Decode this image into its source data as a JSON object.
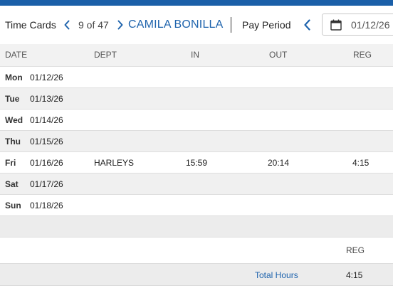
{
  "header": {
    "title": "Time Cards",
    "record_position": "9 of 47",
    "employee_name": "CAMILA BONILLA",
    "pay_period_label": "Pay Period",
    "pay_period_date": "01/12/26"
  },
  "icons": {
    "prev_employee": "chevron-left-icon",
    "next_employee": "chevron-right-icon",
    "prev_period": "chevron-left-icon",
    "calendar": "calendar-icon"
  },
  "colors": {
    "brand": "#1a5fa8",
    "link": "#1f64ad"
  },
  "table": {
    "columns": [
      "DATE",
      "DEPT",
      "IN",
      "OUT",
      "REG"
    ],
    "rows": [
      {
        "day": "Mon",
        "date": "01/12/26",
        "dept": "",
        "in": "",
        "out": "",
        "reg": ""
      },
      {
        "day": "Tue",
        "date": "01/13/26",
        "dept": "",
        "in": "",
        "out": "",
        "reg": ""
      },
      {
        "day": "Wed",
        "date": "01/14/26",
        "dept": "",
        "in": "",
        "out": "",
        "reg": ""
      },
      {
        "day": "Thu",
        "date": "01/15/26",
        "dept": "",
        "in": "",
        "out": "",
        "reg": ""
      },
      {
        "day": "Fri",
        "date": "01/16/26",
        "dept": "HARLEYS",
        "in": "15:59",
        "out": "20:14",
        "reg": "4:15"
      },
      {
        "day": "Sat",
        "date": "01/17/26",
        "dept": "",
        "in": "",
        "out": "",
        "reg": ""
      },
      {
        "day": "Sun",
        "date": "01/18/26",
        "dept": "",
        "in": "",
        "out": "",
        "reg": ""
      }
    ]
  },
  "summary": {
    "column_label": "REG",
    "total_label": "Total Hours",
    "total_reg": "4:15"
  }
}
